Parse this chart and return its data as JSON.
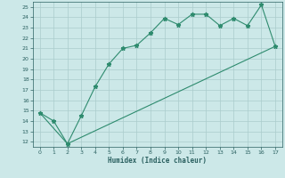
{
  "xlabel": "Humidex (Indice chaleur)",
  "line1_x": [
    0,
    1,
    2,
    3,
    4,
    5,
    6,
    7,
    8,
    9,
    10,
    11,
    12,
    13,
    14,
    15,
    16,
    17
  ],
  "line1_y": [
    14.8,
    14.0,
    11.8,
    14.5,
    17.3,
    19.5,
    21.0,
    21.3,
    22.5,
    23.9,
    23.3,
    24.3,
    24.3,
    23.2,
    23.9,
    23.2,
    25.2,
    21.2
  ],
  "line2_x": [
    0,
    2,
    17
  ],
  "line2_y": [
    14.8,
    11.8,
    21.2
  ],
  "color": "#2e8b6e",
  "bg_color": "#cce8e8",
  "grid_color": "#aacccc",
  "xlim": [
    -0.5,
    17.5
  ],
  "ylim": [
    11.5,
    25.5
  ],
  "yticks": [
    12,
    13,
    14,
    15,
    16,
    17,
    18,
    19,
    20,
    21,
    22,
    23,
    24,
    25
  ],
  "xticks": [
    0,
    1,
    2,
    3,
    4,
    5,
    6,
    7,
    8,
    9,
    10,
    11,
    12,
    13,
    14,
    15,
    16,
    17
  ]
}
